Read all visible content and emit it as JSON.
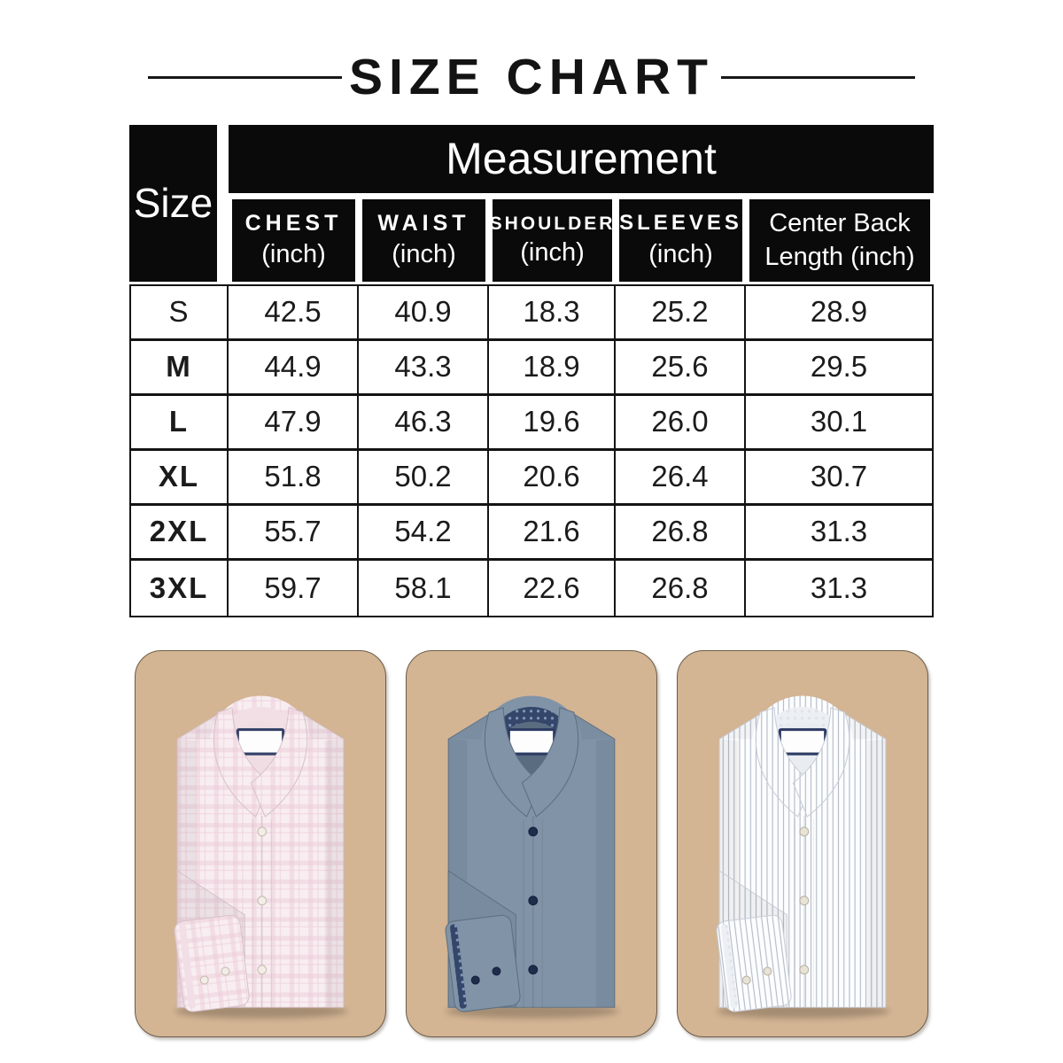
{
  "title": "SIZE CHART",
  "table": {
    "corner_label": "Size",
    "group_header": "Measurement",
    "columns": [
      {
        "label": "CHEST",
        "sub": "(inch)",
        "kind": "wide"
      },
      {
        "label": "WAIST",
        "sub": "(inch)",
        "kind": "wide"
      },
      {
        "label": "SHOULDER",
        "sub": "(inch)",
        "kind": "narrow"
      },
      {
        "label": "SLEEVES",
        "sub": "(inch)",
        "kind": "mid"
      },
      {
        "label": "Center Back",
        "sub": "Length (inch)",
        "kind": "plain"
      }
    ],
    "rows": [
      {
        "size": "S",
        "bold": false,
        "values": [
          "42.5",
          "40.9",
          "18.3",
          "25.2",
          "28.9"
        ]
      },
      {
        "size": "M",
        "bold": true,
        "values": [
          "44.9",
          "43.3",
          "18.9",
          "25.6",
          "29.5"
        ]
      },
      {
        "size": "L",
        "bold": true,
        "values": [
          "47.9",
          "46.3",
          "19.6",
          "26.0",
          "30.1"
        ]
      },
      {
        "size": "XL",
        "bold": true,
        "values": [
          "51.8",
          "50.2",
          "20.6",
          "26.4",
          "30.7"
        ]
      },
      {
        "size": "2XL",
        "bold": true,
        "values": [
          "55.7",
          "54.2",
          "21.6",
          "26.8",
          "31.3"
        ]
      },
      {
        "size": "3XL",
        "bold": true,
        "values": [
          "59.7",
          "58.1",
          "22.6",
          "26.8",
          "31.3"
        ]
      }
    ]
  },
  "products": {
    "card_bg": "#d3b493",
    "card_border": "#6b5d49",
    "cards": [
      {
        "name": "pink-check-shirt",
        "style": "check",
        "colors": {
          "base": "#f8eef1",
          "line": "#ecccd9",
          "edge": "#d8c3cb",
          "inner": "#efdde3",
          "trim_bg": "#f1dfe5",
          "trim_dot": "#f1dfe5",
          "btn": "#f2ede7",
          "btn_edge": "#c7bbb0",
          "label": "#313f66"
        }
      },
      {
        "name": "blue-shirt",
        "style": "solid",
        "colors": {
          "base": "#8093a7",
          "line": "#8093a7",
          "edge": "#5d7082",
          "inner": "#5a6c80",
          "trim_bg": "#344669",
          "trim_dot": "#8098ba",
          "btn": "#1f2d4d",
          "btn_edge": "#15203a",
          "label": "#2c3a63"
        }
      },
      {
        "name": "white-stripe-shirt",
        "style": "stripe",
        "colors": {
          "base": "#fcfdfe",
          "line": "#a6b0c0",
          "edge": "#c9ced8",
          "inner": "#e9ecf1",
          "trim_bg": "#eceff4",
          "trim_dot": "#dfe3ea",
          "btn": "#e8e3d6",
          "btn_edge": "#bab3a3",
          "label": "#2c3a63"
        }
      }
    ]
  }
}
